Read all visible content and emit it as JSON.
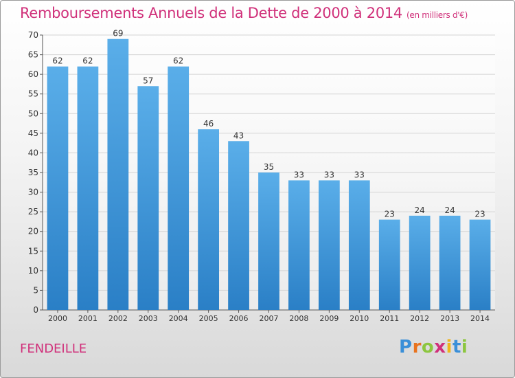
{
  "chart_data": {
    "type": "bar",
    "title": "Remboursements Annuels de la Dette de 2000 à 2014",
    "subtitle": "(en milliers d'€)",
    "categories": [
      "2000",
      "2001",
      "2002",
      "2003",
      "2004",
      "2005",
      "2006",
      "2007",
      "2008",
      "2009",
      "2010",
      "2011",
      "2012",
      "2013",
      "2014"
    ],
    "values": [
      62,
      62,
      69,
      57,
      62,
      46,
      43,
      35,
      33,
      33,
      33,
      23,
      24,
      24,
      23
    ],
    "xlabel": "",
    "ylabel": "",
    "ylim": [
      0,
      70
    ],
    "yticks": [
      0,
      5,
      10,
      15,
      20,
      25,
      30,
      35,
      40,
      45,
      50,
      55,
      60,
      65,
      70
    ],
    "grid": true,
    "legend": "none",
    "bar_color": "#3f97dc",
    "bar_color_light": "#5aaee9",
    "bar_color_dark": "#2a7fc6"
  },
  "footer": {
    "commune": "FENDEILLE",
    "logo": {
      "letters": [
        "P",
        "r",
        "o",
        "x",
        "i",
        "t",
        "i"
      ],
      "colors": [
        "#3a8fd8",
        "#e8731f",
        "#8cc63f",
        "#d0307a",
        "#f0b41c",
        "#3a8fd8",
        "#8cc63f"
      ]
    }
  },
  "colors": {
    "title": "#d0307a",
    "grid": "#d4d4d4",
    "axis": "#555555"
  }
}
